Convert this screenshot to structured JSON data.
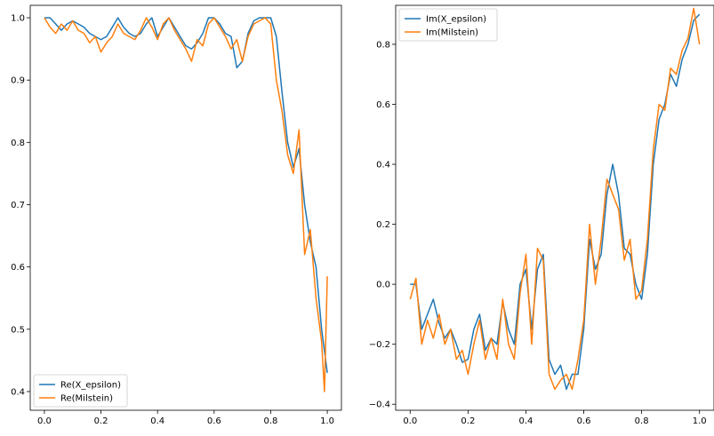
{
  "chart_data": [
    {
      "type": "line",
      "title": "",
      "xlabel": "",
      "ylabel": "",
      "xlim": [
        -0.05,
        1.05
      ],
      "ylim": [
        0.37,
        1.02
      ],
      "grid": false,
      "legend_position": "lower-left",
      "x_ticks": [
        0.0,
        0.2,
        0.4,
        0.6,
        0.8,
        1.0
      ],
      "x_tick_labels": [
        "0.0",
        "0.2",
        "0.4",
        "0.6",
        "0.8",
        "1.0"
      ],
      "y_ticks": [
        0.4,
        0.5,
        0.6,
        0.7,
        0.8,
        0.9,
        1.0
      ],
      "y_tick_labels": [
        "0.4",
        "0.5",
        "0.6",
        "0.7",
        "0.8",
        "0.9",
        "1.0"
      ],
      "series": [
        {
          "name": "Re(X_epsilon)",
          "color": "#1f77b4",
          "x": [
            0.0,
            0.02,
            0.04,
            0.06,
            0.08,
            0.1,
            0.12,
            0.14,
            0.16,
            0.18,
            0.2,
            0.22,
            0.24,
            0.26,
            0.28,
            0.3,
            0.32,
            0.34,
            0.36,
            0.38,
            0.4,
            0.42,
            0.44,
            0.46,
            0.48,
            0.5,
            0.52,
            0.54,
            0.56,
            0.58,
            0.6,
            0.62,
            0.64,
            0.66,
            0.68,
            0.7,
            0.72,
            0.74,
            0.76,
            0.78,
            0.8,
            0.82,
            0.84,
            0.86,
            0.88,
            0.9,
            0.92,
            0.94,
            0.96,
            0.98,
            1.0
          ],
          "y": [
            1.0,
            1.0,
            0.99,
            0.98,
            0.99,
            0.995,
            0.99,
            0.985,
            0.975,
            0.97,
            0.965,
            0.97,
            0.985,
            1.0,
            0.985,
            0.975,
            0.97,
            0.975,
            0.99,
            1.0,
            0.97,
            0.985,
            1.0,
            0.985,
            0.97,
            0.955,
            0.95,
            0.96,
            0.975,
            1.0,
            1.0,
            0.99,
            0.975,
            0.97,
            0.92,
            0.93,
            0.975,
            0.995,
            1.0,
            1.0,
            1.0,
            0.97,
            0.88,
            0.8,
            0.76,
            0.79,
            0.7,
            0.64,
            0.6,
            0.5,
            0.43
          ]
        },
        {
          "name": "Re(Milstein)",
          "color": "#ff7f0e",
          "x": [
            0.0,
            0.02,
            0.04,
            0.06,
            0.08,
            0.1,
            0.12,
            0.14,
            0.16,
            0.18,
            0.2,
            0.22,
            0.24,
            0.26,
            0.28,
            0.3,
            0.32,
            0.34,
            0.36,
            0.38,
            0.4,
            0.42,
            0.44,
            0.46,
            0.48,
            0.5,
            0.52,
            0.54,
            0.56,
            0.58,
            0.6,
            0.62,
            0.64,
            0.66,
            0.68,
            0.7,
            0.72,
            0.74,
            0.76,
            0.78,
            0.8,
            0.82,
            0.84,
            0.86,
            0.88,
            0.9,
            0.92,
            0.94,
            0.96,
            0.98,
            0.99,
            1.0
          ],
          "y": [
            1.0,
            0.985,
            0.975,
            0.99,
            0.98,
            0.995,
            0.98,
            0.975,
            0.96,
            0.97,
            0.945,
            0.96,
            0.97,
            0.99,
            0.975,
            0.97,
            0.965,
            0.98,
            1.0,
            0.985,
            0.965,
            0.99,
            1.0,
            0.98,
            0.965,
            0.95,
            0.93,
            0.965,
            0.955,
            0.99,
            1.0,
            0.985,
            0.97,
            0.95,
            0.965,
            0.93,
            0.97,
            0.99,
            0.995,
            1.0,
            0.99,
            0.9,
            0.85,
            0.78,
            0.75,
            0.82,
            0.62,
            0.66,
            0.55,
            0.48,
            0.4,
            0.585
          ]
        }
      ]
    },
    {
      "type": "line",
      "title": "",
      "xlabel": "",
      "ylabel": "",
      "xlim": [
        -0.05,
        1.05
      ],
      "ylim": [
        -0.42,
        0.93
      ],
      "grid": false,
      "legend_position": "upper-left",
      "x_ticks": [
        0.0,
        0.2,
        0.4,
        0.6,
        0.8,
        1.0
      ],
      "x_tick_labels": [
        "0.0",
        "0.2",
        "0.4",
        "0.6",
        "0.8",
        "1.0"
      ],
      "y_ticks": [
        -0.4,
        -0.2,
        0.0,
        0.2,
        0.4,
        0.6,
        0.8
      ],
      "y_tick_labels": [
        "−0.4",
        "−0.2",
        "0.0",
        "0.2",
        "0.4",
        "0.6",
        "0.8"
      ],
      "series": [
        {
          "name": "Im(X_epsilon)",
          "color": "#1f77b4",
          "x": [
            0.0,
            0.02,
            0.04,
            0.06,
            0.08,
            0.1,
            0.12,
            0.14,
            0.16,
            0.18,
            0.2,
            0.22,
            0.24,
            0.26,
            0.28,
            0.3,
            0.32,
            0.34,
            0.36,
            0.38,
            0.4,
            0.42,
            0.44,
            0.46,
            0.48,
            0.5,
            0.52,
            0.54,
            0.56,
            0.58,
            0.6,
            0.62,
            0.64,
            0.66,
            0.68,
            0.7,
            0.72,
            0.74,
            0.76,
            0.78,
            0.8,
            0.82,
            0.84,
            0.86,
            0.88,
            0.9,
            0.92,
            0.94,
            0.96,
            0.98,
            1.0
          ],
          "y": [
            0.0,
            0.0,
            -0.15,
            -0.1,
            -0.05,
            -0.13,
            -0.18,
            -0.15,
            -0.2,
            -0.26,
            -0.25,
            -0.15,
            -0.1,
            -0.22,
            -0.18,
            -0.2,
            -0.06,
            -0.15,
            -0.2,
            0.0,
            0.05,
            -0.15,
            0.05,
            0.1,
            -0.25,
            -0.3,
            -0.27,
            -0.35,
            -0.3,
            -0.3,
            -0.15,
            0.15,
            0.05,
            0.1,
            0.3,
            0.4,
            0.3,
            0.12,
            0.1,
            0.0,
            -0.05,
            0.1,
            0.4,
            0.55,
            0.6,
            0.7,
            0.66,
            0.75,
            0.8,
            0.88,
            0.9
          ]
        },
        {
          "name": "Im(Milstein)",
          "color": "#ff7f0e",
          "x": [
            0.0,
            0.02,
            0.04,
            0.06,
            0.08,
            0.1,
            0.12,
            0.14,
            0.16,
            0.18,
            0.2,
            0.22,
            0.24,
            0.26,
            0.28,
            0.3,
            0.32,
            0.34,
            0.36,
            0.38,
            0.4,
            0.42,
            0.44,
            0.46,
            0.48,
            0.5,
            0.52,
            0.54,
            0.56,
            0.58,
            0.6,
            0.62,
            0.64,
            0.66,
            0.68,
            0.7,
            0.72,
            0.74,
            0.76,
            0.78,
            0.8,
            0.82,
            0.84,
            0.86,
            0.88,
            0.9,
            0.92,
            0.94,
            0.96,
            0.98,
            1.0
          ],
          "y": [
            -0.05,
            0.02,
            -0.2,
            -0.12,
            -0.18,
            -0.1,
            -0.2,
            -0.15,
            -0.25,
            -0.22,
            -0.3,
            -0.2,
            -0.12,
            -0.25,
            -0.18,
            -0.25,
            -0.05,
            -0.2,
            -0.25,
            -0.03,
            0.1,
            -0.2,
            0.12,
            0.08,
            -0.3,
            -0.35,
            -0.32,
            -0.3,
            -0.35,
            -0.25,
            -0.12,
            0.2,
            0.0,
            0.15,
            0.35,
            0.3,
            0.25,
            0.08,
            0.15,
            -0.05,
            -0.02,
            0.15,
            0.45,
            0.6,
            0.58,
            0.72,
            0.7,
            0.78,
            0.82,
            0.92,
            0.8
          ]
        }
      ]
    }
  ]
}
